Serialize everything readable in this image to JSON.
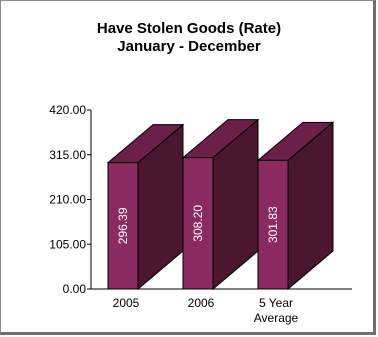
{
  "chart_data": {
    "type": "bar",
    "title": "Have Stolen Goods (Rate)",
    "subtitle": "January - December",
    "categories": [
      [
        "2005"
      ],
      [
        "2006"
      ],
      [
        "5 Year",
        "Average"
      ]
    ],
    "values": [
      296.39,
      308.2,
      301.83
    ],
    "value_labels": [
      "296.39",
      "308.20",
      "301.83"
    ],
    "yticks": [
      0,
      105,
      210,
      315,
      420
    ],
    "ytick_labels": [
      "0.00",
      "105.00",
      "210.00",
      "315.00",
      "420.00"
    ],
    "ylim": [
      0,
      420
    ],
    "xlabel": "",
    "ylabel": "",
    "grid": false,
    "style": "3d-bar",
    "colors": {
      "front": "#8b2a60",
      "side": "#4a1630",
      "top": "#6b1f49",
      "outline": "#000000",
      "value_label": "#ffffff"
    }
  }
}
